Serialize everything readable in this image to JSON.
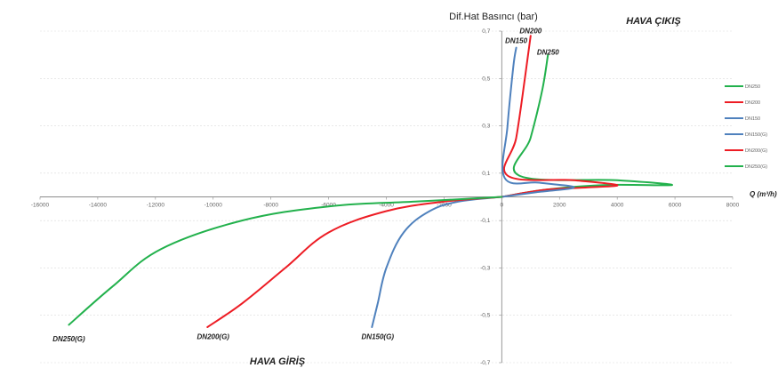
{
  "chart_data": {
    "type": "line",
    "title": "Dif.Hat  Basıncı  (bar)",
    "header_top": "HAVA ÇIKIŞ",
    "header_bottom": "HAVA GİRİŞ",
    "xlabel": "Q (m³/h)",
    "ylabel": "",
    "xlim": [
      -16000,
      8000
    ],
    "ylim": [
      -0.7,
      0.7
    ],
    "x_ticks": [
      "-16000",
      "-14000",
      "-12000",
      "-10000",
      "-8000",
      "-6000",
      "-4000",
      "-2000",
      "0",
      "2000",
      "4000",
      "6000",
      "8000"
    ],
    "y_ticks": [
      "0,7",
      "0,5",
      "0,3",
      "0,1",
      "-0,1",
      "-0,3",
      "-0,5",
      "-0,7"
    ],
    "grid": true,
    "legend_position": "right",
    "legend": [
      "DN250",
      "DN200",
      "DN150",
      "DN150(G)",
      "DN200(G)",
      "DN250(G)"
    ],
    "series": [
      {
        "name": "DN250",
        "color": "#22b14c",
        "points": [
          [
            0,
            0
          ],
          [
            1500,
            0.03
          ],
          [
            3500,
            0.05
          ],
          [
            5900,
            0.05
          ],
          [
            4000,
            0.07
          ],
          [
            600,
            0.09
          ],
          [
            1000,
            0.25
          ],
          [
            1400,
            0.45
          ],
          [
            1600,
            0.6
          ]
        ]
      },
      {
        "name": "DN200",
        "color": "#ed1c24",
        "points": [
          [
            0,
            0
          ],
          [
            1500,
            0.03
          ],
          [
            3000,
            0.04
          ],
          [
            4000,
            0.05
          ],
          [
            2500,
            0.07
          ],
          [
            200,
            0.09
          ],
          [
            500,
            0.25
          ],
          [
            800,
            0.5
          ],
          [
            1000,
            0.68
          ]
        ]
      },
      {
        "name": "DN150",
        "color": "#4f81bd",
        "points": [
          [
            0,
            0
          ],
          [
            1200,
            0.02
          ],
          [
            2500,
            0.04
          ],
          [
            1300,
            0.06
          ],
          [
            100,
            0.08
          ],
          [
            200,
            0.3
          ],
          [
            400,
            0.55
          ],
          [
            500,
            0.63
          ]
        ]
      },
      {
        "name": "DN150(G)",
        "color": "#4f81bd",
        "points": [
          [
            0,
            0
          ],
          [
            -1500,
            -0.02
          ],
          [
            -2500,
            -0.06
          ],
          [
            -3400,
            -0.15
          ],
          [
            -4000,
            -0.3
          ],
          [
            -4300,
            -0.45
          ],
          [
            -4500,
            -0.55
          ]
        ]
      },
      {
        "name": "DN200(G)",
        "color": "#ed1c24",
        "points": [
          [
            0,
            0
          ],
          [
            -2000,
            -0.02
          ],
          [
            -4000,
            -0.06
          ],
          [
            -6000,
            -0.15
          ],
          [
            -7500,
            -0.3
          ],
          [
            -9000,
            -0.45
          ],
          [
            -10200,
            -0.55
          ]
        ]
      },
      {
        "name": "DN250(G)",
        "color": "#22b14c",
        "points": [
          [
            0,
            0
          ],
          [
            -3000,
            -0.02
          ],
          [
            -6000,
            -0.04
          ],
          [
            -9000,
            -0.1
          ],
          [
            -11800,
            -0.22
          ],
          [
            -13500,
            -0.38
          ],
          [
            -15000,
            -0.54
          ]
        ]
      }
    ],
    "annotations": [
      {
        "text": "DN200",
        "x": 1000,
        "y": 0.69
      },
      {
        "text": "DN150",
        "x": 500,
        "y": 0.65
      },
      {
        "text": "DN250",
        "x": 1600,
        "y": 0.6
      },
      {
        "text": "DN250(G)",
        "x": -15000,
        "y": -0.61
      },
      {
        "text": "DN200(G)",
        "x": -10000,
        "y": -0.6
      },
      {
        "text": "DN150(G)",
        "x": -4300,
        "y": -0.6
      }
    ]
  }
}
